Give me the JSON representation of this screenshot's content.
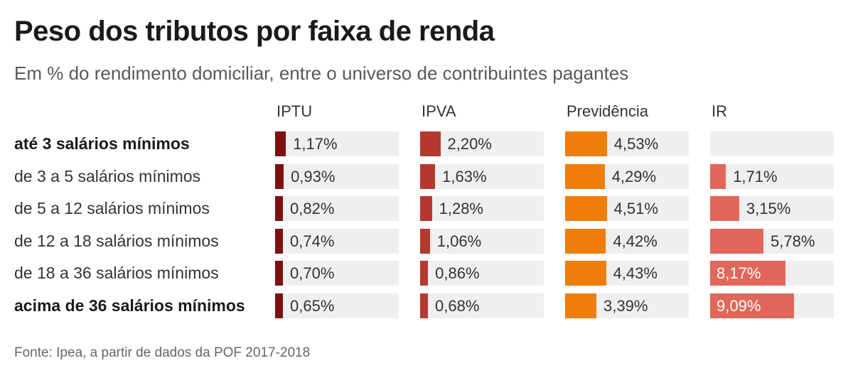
{
  "chart_data": {
    "type": "table",
    "title": "Peso dos tributos por faixa de renda",
    "subtitle": "Em % do rendimento domiciliar, entre o universo de contribuintes pagantes",
    "source": "Fonte: Ipea, a partir de dados da POF 2017-2018",
    "rows": [
      {
        "label": "até 3 salários mínimos",
        "bold": true
      },
      {
        "label": "de 3 a 5 salários mínimos",
        "bold": false
      },
      {
        "label": "de 5 a 12 salários mínimos",
        "bold": false
      },
      {
        "label": "de 12 a 18 salários mínimos",
        "bold": false
      },
      {
        "label": "de 18 a 36 salários mínimos",
        "bold": false
      },
      {
        "label": "acima de 36 salários mínimos",
        "bold": true
      }
    ],
    "series": [
      {
        "name": "IPTU",
        "color": "#7a1212",
        "max": 9.09,
        "values": [
          1.17,
          0.93,
          0.82,
          0.74,
          0.7,
          0.65
        ],
        "labels": [
          "1,17%",
          "0,93%",
          "0,82%",
          "0,74%",
          "0,70%",
          "0,65%"
        ]
      },
      {
        "name": "IPVA",
        "color": "#b5392f",
        "max": 9.09,
        "values": [
          2.2,
          1.63,
          1.28,
          1.06,
          0.86,
          0.68
        ],
        "labels": [
          "2,20%",
          "1,63%",
          "1,28%",
          "1,06%",
          "0,86%",
          "0,68%"
        ]
      },
      {
        "name": "Previdência",
        "color": "#ee7d0a",
        "max": 9.09,
        "values": [
          4.53,
          4.29,
          4.51,
          4.42,
          4.43,
          3.39
        ],
        "labels": [
          "4,53%",
          "4,29%",
          "4,51%",
          "4,42%",
          "4,43%",
          "3,39%"
        ]
      },
      {
        "name": "IR",
        "color": "#e0675a",
        "max": 9.09,
        "values": [
          null,
          1.71,
          3.15,
          5.78,
          8.17,
          9.09
        ],
        "labels": [
          null,
          "1,71%",
          "3,15%",
          "5,78%",
          "8,17%",
          "9,09%"
        ]
      }
    ]
  }
}
